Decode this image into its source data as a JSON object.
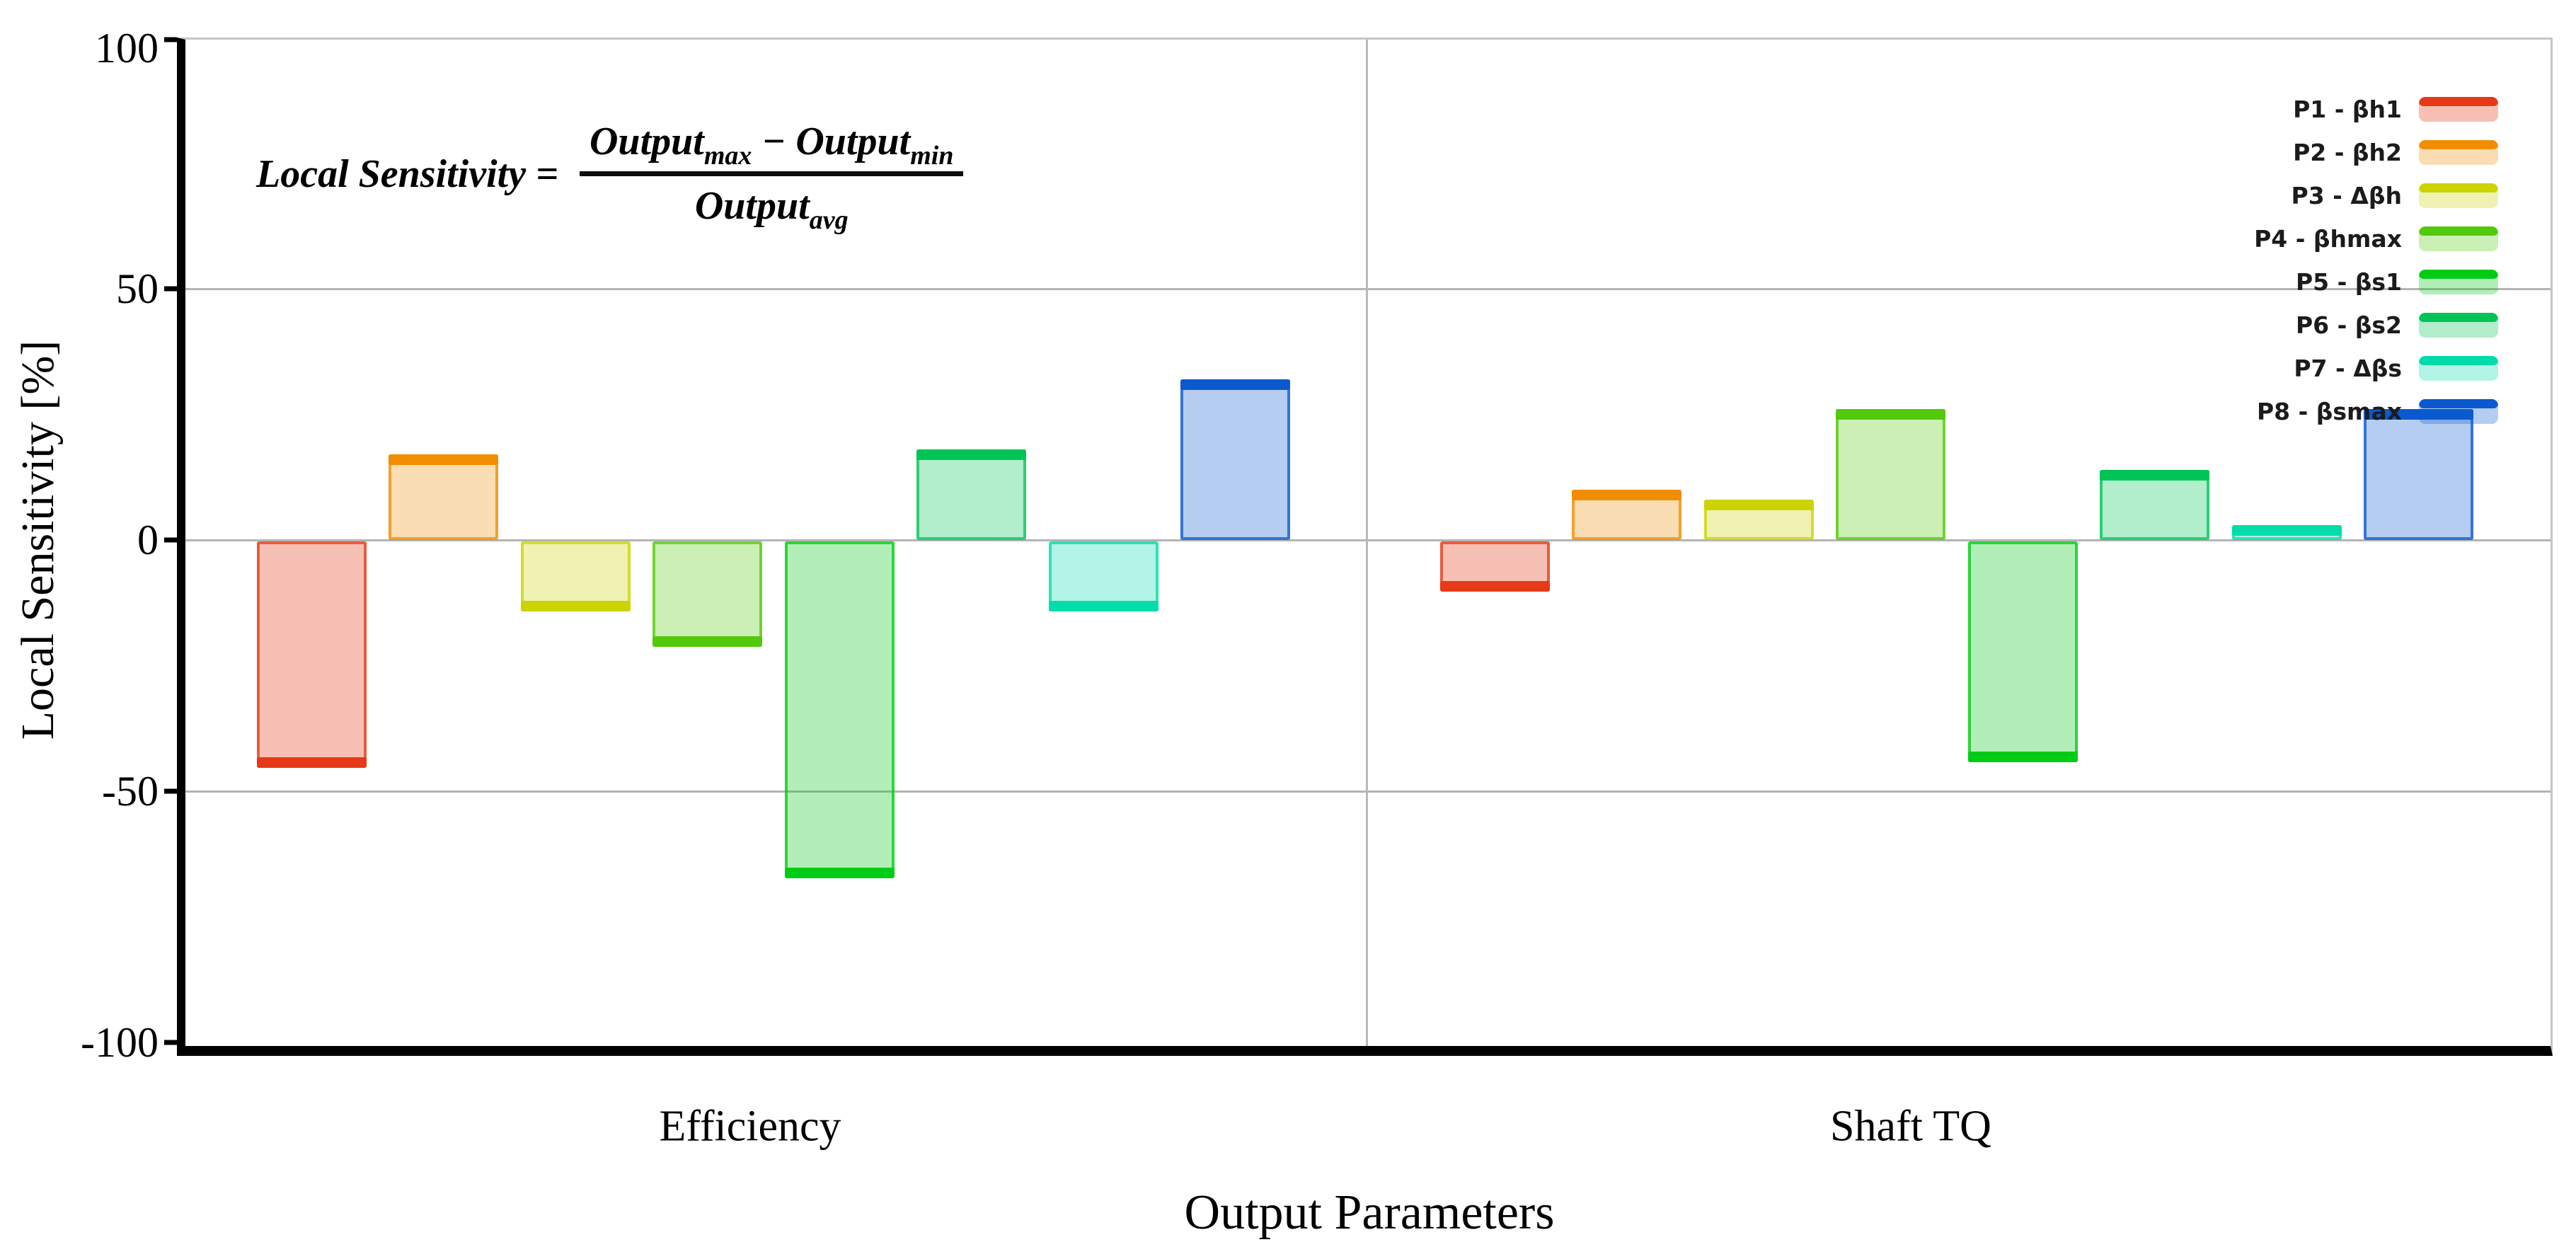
{
  "chart": {
    "y_axis": {
      "label": "Local Sensitivity [%]"
    },
    "x_axis": {
      "label": "Output Parameters"
    }
  },
  "formula": {
    "lhs": "Local Sensitivity =",
    "num_left": "Output",
    "num_left_sub": "max",
    "num_minus": "−",
    "num_right": "Output",
    "num_right_sub": "min",
    "den": "Output",
    "den_sub": "avg"
  },
  "chart_data": {
    "type": "bar",
    "title": "",
    "xlabel": "Output Parameters",
    "ylabel": "Local Sensitivity [%]",
    "ylim": [
      -100,
      100
    ],
    "yticks": [
      100,
      50,
      0,
      -50,
      -100
    ],
    "gridlines": [
      50,
      0,
      -50
    ],
    "grid": "horizontal",
    "legend_position": "upper right",
    "categories": [
      "Efficiency",
      "Shaft TQ"
    ],
    "series": [
      {
        "name": "P1 - βh1",
        "edge": "#E53A17",
        "fill": "rgba(229,58,23,0.32)",
        "values": [
          -45,
          -10
        ]
      },
      {
        "name": "P2 - βh2",
        "edge": "#F08D00",
        "fill": "rgba(240,141,0,0.30)",
        "values": [
          17,
          10
        ]
      },
      {
        "name": "P3 - Δβh",
        "edge": "#CBD400",
        "fill": "rgba(203,212,0,0.30)",
        "values": [
          -14,
          8
        ]
      },
      {
        "name": "P4 - βhmax",
        "edge": "#52C90B",
        "fill": "rgba(82,201,11,0.30)",
        "values": [
          -21,
          26
        ]
      },
      {
        "name": "P5 - βs1",
        "edge": "#00CB15",
        "fill": "rgba(0,203,21,0.30)",
        "values": [
          -67,
          -44
        ]
      },
      {
        "name": "P6 - βs2",
        "edge": "#00C456",
        "fill": "rgba(0,196,86,0.30)",
        "values": [
          18,
          14
        ]
      },
      {
        "name": "P7 - Δβs",
        "edge": "#00DCAA",
        "fill": "rgba(0,220,170,0.30)",
        "values": [
          -14,
          3
        ]
      },
      {
        "name": "P8 - βsmax",
        "edge": "#0B59CE",
        "fill": "rgba(11,89,206,0.30)",
        "values": [
          32,
          26
        ]
      }
    ]
  }
}
